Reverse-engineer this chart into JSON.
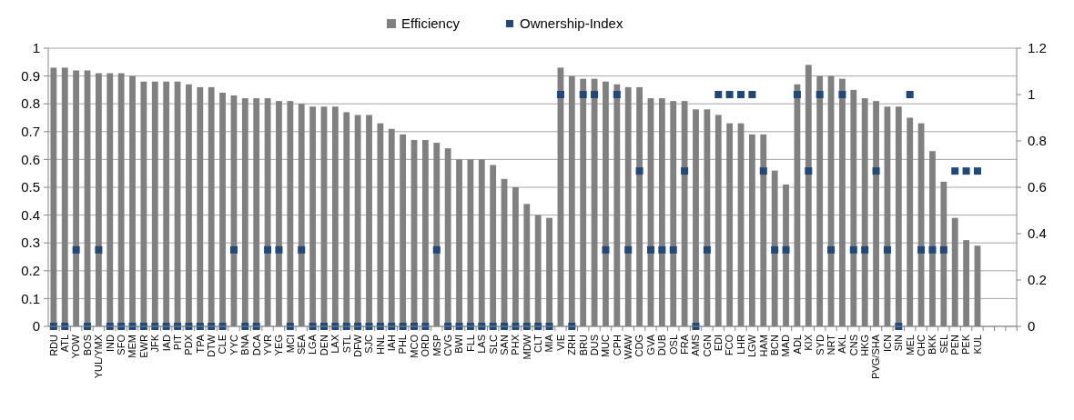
{
  "chart_data": {
    "type": "bar",
    "categories": [
      "RDU",
      "ATL",
      "YOW",
      "BOS",
      "YUL/YMX",
      "IND",
      "SFO",
      "MEM",
      "EWR",
      "JFK",
      "IAD",
      "PIT",
      "PDX",
      "TPA",
      "DTW",
      "CLE",
      "YYC",
      "BNA",
      "DCA",
      "YVR",
      "YEG",
      "MCI",
      "SEA",
      "LGA",
      "DEN",
      "LAX",
      "STL",
      "DFW",
      "SJC",
      "HNL",
      "IAH",
      "PHL",
      "MCO",
      "ORD",
      "MSP",
      "CVG",
      "BWI",
      "FLL",
      "LAS",
      "SLC",
      "SAN",
      "PHX",
      "MDW",
      "CLT",
      "MIA",
      "VIE",
      "ZRH",
      "BRU",
      "DUS",
      "MUC",
      "CPH",
      "WAW",
      "CDG",
      "GVA",
      "DUB",
      "OSL",
      "FRA",
      "AMS",
      "CGN",
      "EDI",
      "FCO",
      "LHR",
      "LGW",
      "HAM",
      "BCN",
      "MAD",
      "ADL",
      "KIX",
      "SYD",
      "NRT",
      "AKL",
      "CNS",
      "HKG",
      "PVG/SHA",
      "ICN",
      "SIN",
      "MEL",
      "CHC",
      "BKK",
      "SEL",
      "PEN",
      "PEK",
      "KUL",
      null,
      null,
      null
    ],
    "series": [
      {
        "name": "Efficiency",
        "color": "#808080",
        "values": [
          0.93,
          0.93,
          0.92,
          0.92,
          0.91,
          0.91,
          0.91,
          0.9,
          0.88,
          0.88,
          0.88,
          0.88,
          0.87,
          0.86,
          0.86,
          0.84,
          0.83,
          0.82,
          0.82,
          0.82,
          0.81,
          0.81,
          0.8,
          0.79,
          0.79,
          0.79,
          0.77,
          0.76,
          0.76,
          0.73,
          0.71,
          0.69,
          0.67,
          0.67,
          0.66,
          0.64,
          0.6,
          0.6,
          0.6,
          0.58,
          0.53,
          0.5,
          0.44,
          0.4,
          0.39,
          0.93,
          0.9,
          0.89,
          0.89,
          0.88,
          0.87,
          0.86,
          0.86,
          0.82,
          0.82,
          0.81,
          0.81,
          0.78,
          0.78,
          0.76,
          0.73,
          0.73,
          0.69,
          0.69,
          0.56,
          0.51,
          0.87,
          0.94,
          0.9,
          0.9,
          0.89,
          0.85,
          0.82,
          0.81,
          0.79,
          0.79,
          0.75,
          0.73,
          0.63,
          0.52,
          0.39,
          0.31,
          0.29,
          null,
          null,
          null
        ]
      },
      {
        "name": "Ownership-Index",
        "type": "scatter",
        "axis": "y2",
        "color": "#1f497d",
        "marker": "square",
        "values": [
          0,
          0,
          0.33,
          0,
          0.33,
          0,
          0,
          0,
          0,
          0,
          0,
          0,
          0,
          0,
          0,
          0,
          0.33,
          0,
          0,
          0.33,
          0.33,
          0,
          0.33,
          0,
          0,
          0,
          0,
          0,
          0,
          0,
          0,
          0,
          0,
          0,
          0.33,
          0,
          0,
          0,
          0,
          0,
          0,
          0,
          0,
          0,
          0,
          1,
          0,
          1,
          1,
          0.33,
          1,
          0.33,
          0.67,
          0.33,
          0.33,
          0.33,
          0.67,
          0,
          0.33,
          1,
          1,
          1,
          1,
          0.67,
          0.33,
          0.33,
          1,
          0.67,
          1,
          0.33,
          1,
          0.33,
          0.33,
          0.67,
          0.33,
          0,
          1,
          0.33,
          0.33,
          0.33,
          0.67,
          0.67,
          0.67,
          null,
          null,
          null
        ]
      }
    ],
    "ylim": [
      0,
      1
    ],
    "yticks": [
      0,
      0.1,
      0.2,
      0.3,
      0.4,
      0.5,
      0.6,
      0.7,
      0.8,
      0.9,
      1
    ],
    "y2lim": [
      0,
      1.2
    ],
    "y2ticks": [
      0,
      0.2,
      0.4,
      0.6,
      0.8,
      1,
      1.2
    ],
    "grid": "y",
    "legend": "top"
  }
}
